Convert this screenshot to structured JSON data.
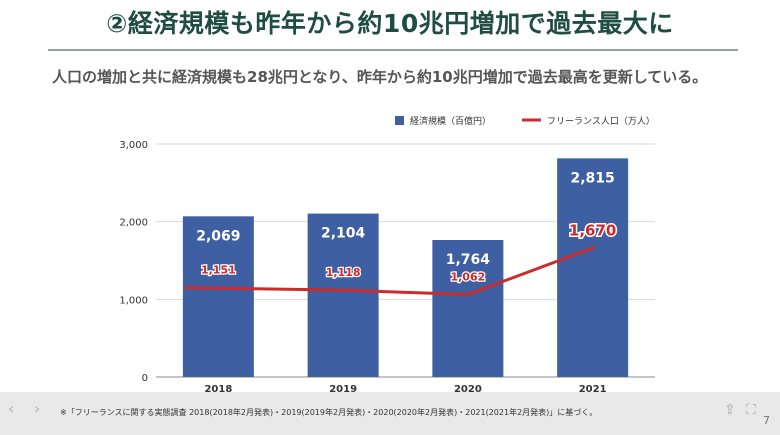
{
  "page": {
    "title": "②経済規模も昨年から約10兆円増加で過去最大に",
    "subtitle": "人口の増加と共に経済規模も28兆円となり、昨年から約10兆円増加で過去最高を更新している。",
    "footnote": "※「フリーランスに関する実態調査 2018(2018年2月発表)・2019(2019年2月発表)・2020(2020年2月発表)・2021(2021年2月発表)」に基づく。",
    "page_number": "7",
    "prev_glyph": "‹",
    "next_glyph": "›"
  },
  "colors": {
    "bar": "#3f5fa3",
    "line": "#cc2b2b",
    "title": "#1f4d40"
  },
  "chart_data": {
    "type": "bar",
    "categories": [
      "2018",
      "2019",
      "2020",
      "2021"
    ],
    "series": [
      {
        "name": "経済規模（百億円）",
        "kind": "bar",
        "values": [
          2069,
          2104,
          1764,
          2815
        ]
      },
      {
        "name": "フリーランス人口（万人）",
        "kind": "line",
        "values": [
          1151,
          1118,
          1062,
          1670
        ]
      }
    ],
    "bar_labels": [
      "2,069",
      "2,104",
      "1,764",
      "2,815"
    ],
    "line_labels": [
      "1,151",
      "1,118",
      "1,062",
      "1,670"
    ],
    "y_ticks": [
      "0",
      "1,000",
      "2,000",
      "3,000"
    ],
    "ylim": [
      0,
      3000
    ],
    "grid": true,
    "legend_position": "top-right"
  }
}
